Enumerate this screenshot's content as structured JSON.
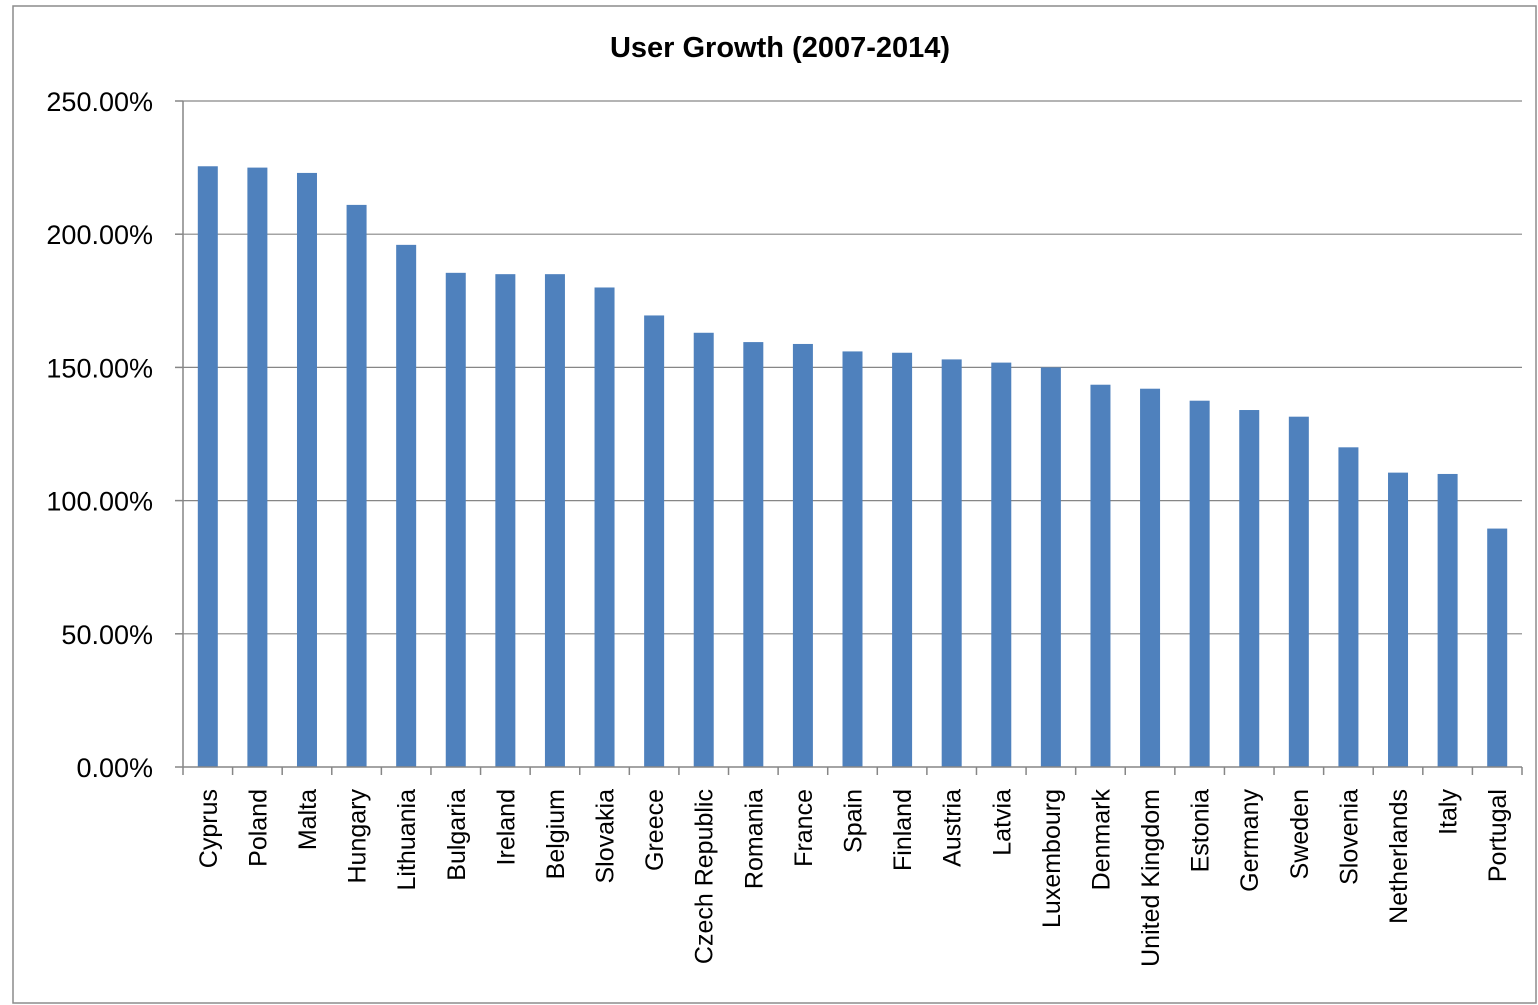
{
  "chart_data": {
    "type": "bar",
    "title": "User Growth (2007-2014)",
    "xlabel": "",
    "ylabel": "",
    "ylim": [
      0,
      250
    ],
    "y_ticks": [
      0,
      50,
      100,
      150,
      200,
      250
    ],
    "y_tick_labels": [
      "0.00%",
      "50.00%",
      "100.00%",
      "150.00%",
      "200.00%",
      "250.00%"
    ],
    "grid": true,
    "legend": "none",
    "bar_color": "#4F81BD",
    "categories": [
      "Cyprus",
      "Poland",
      "Malta",
      "Hungary",
      "Lithuania",
      "Bulgaria",
      "Ireland",
      "Belgium",
      "Slovakia",
      "Greece",
      "Czech Republic",
      "Romania",
      "France",
      "Spain",
      "Finland",
      "Austria",
      "Latvia",
      "Luxembourg",
      "Denmark",
      "United Kingdom",
      "Estonia",
      "Germany",
      "Sweden",
      "Slovenia",
      "Netherlands",
      "Italy",
      "Portugal"
    ],
    "values": [
      225.5,
      225,
      223,
      211,
      196,
      185.5,
      185,
      185,
      180,
      169.5,
      163,
      159.5,
      158.8,
      156,
      155.5,
      153,
      151.8,
      150,
      143.5,
      142,
      137.5,
      134,
      131.5,
      120,
      110.5,
      110,
      89.5
    ]
  }
}
